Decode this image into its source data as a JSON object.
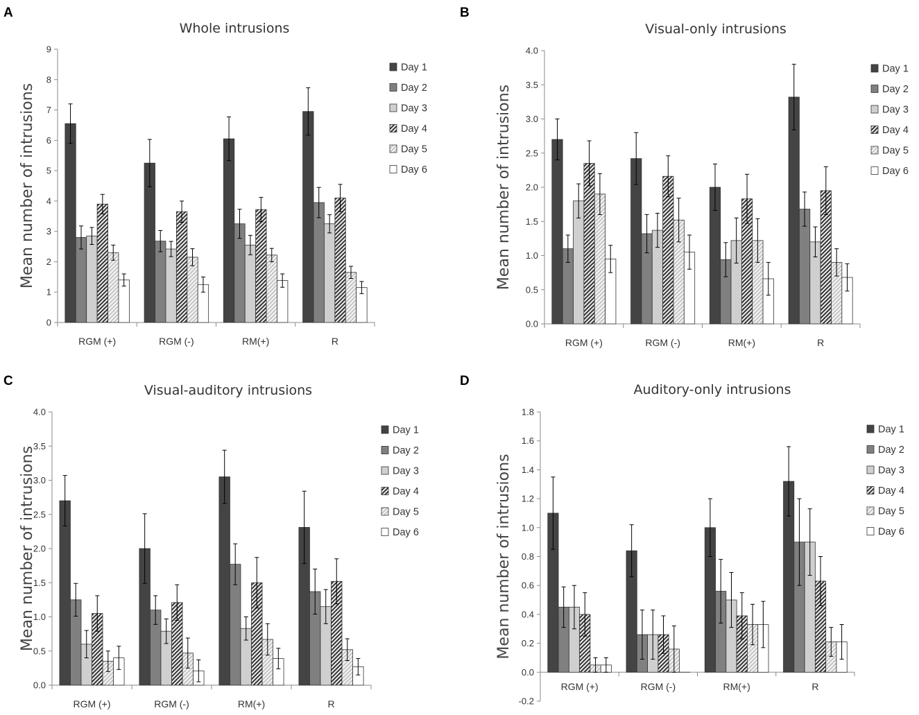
{
  "colors": {
    "day1": "#444444",
    "day2": "#808080",
    "day3": "#cfcfcf",
    "day4_bg": "#efefef",
    "day4_stripe": "#333333",
    "day5_bg": "#f3f3f3",
    "day5_stripe": "#bdbdbd",
    "day6": "#ffffff",
    "axis": "#8a8a8a"
  },
  "chart_data": [
    {
      "panel": "A",
      "type": "bar",
      "title": "Whole intrusions",
      "ylabel": "Mean number of intrusions",
      "xlabel": "",
      "ylim": [
        0,
        9
      ],
      "yticks": [
        "0",
        "1",
        "2",
        "3",
        "4",
        "5",
        "6",
        "7",
        "8",
        "9"
      ],
      "categories": [
        "RGM (+)",
        "RGM (-)",
        "RM(+)",
        "R"
      ],
      "legend": "right",
      "series": [
        {
          "name": "Day 1",
          "values": [
            6.55,
            5.25,
            6.05,
            6.95
          ],
          "errors": [
            0.65,
            0.78,
            0.72,
            0.78
          ]
        },
        {
          "name": "Day 2",
          "values": [
            2.8,
            2.68,
            3.25,
            3.95
          ],
          "errors": [
            0.38,
            0.35,
            0.48,
            0.5
          ]
        },
        {
          "name": "Day 3",
          "values": [
            2.85,
            2.42,
            2.55,
            3.25
          ],
          "errors": [
            0.28,
            0.25,
            0.32,
            0.3
          ]
        },
        {
          "name": "Day 4",
          "values": [
            3.9,
            3.65,
            3.72,
            4.1
          ],
          "errors": [
            0.32,
            0.35,
            0.4,
            0.45
          ]
        },
        {
          "name": "Day 5",
          "values": [
            2.3,
            2.15,
            2.22,
            1.65
          ],
          "errors": [
            0.25,
            0.28,
            0.22,
            0.2
          ]
        },
        {
          "name": "Day 6",
          "values": [
            1.4,
            1.25,
            1.38,
            1.15
          ],
          "errors": [
            0.2,
            0.25,
            0.22,
            0.2
          ]
        }
      ]
    },
    {
      "panel": "B",
      "type": "bar",
      "title": "Visual-only intrusions",
      "ylabel": "Mean number of intrusions",
      "xlabel": "",
      "ylim": [
        0,
        4
      ],
      "yticks": [
        "0.0",
        "0.5",
        "1.0",
        "1.5",
        "2.0",
        "2.5",
        "3.0",
        "3.5",
        "4.0"
      ],
      "categories": [
        "RGM (+)",
        "RGM (-)",
        "RM(+)",
        "R"
      ],
      "legend": "right",
      "series": [
        {
          "name": "Day 1",
          "values": [
            2.7,
            2.42,
            2.0,
            3.32
          ],
          "errors": [
            0.3,
            0.38,
            0.34,
            0.48
          ]
        },
        {
          "name": "Day 2",
          "values": [
            1.1,
            1.32,
            0.94,
            1.68
          ],
          "errors": [
            0.2,
            0.28,
            0.25,
            0.25
          ]
        },
        {
          "name": "Day 3",
          "values": [
            1.8,
            1.37,
            1.22,
            1.2
          ],
          "errors": [
            0.25,
            0.25,
            0.33,
            0.22
          ]
        },
        {
          "name": "Day 4",
          "values": [
            2.35,
            2.16,
            1.83,
            1.95
          ],
          "errors": [
            0.33,
            0.3,
            0.36,
            0.35
          ]
        },
        {
          "name": "Day 5",
          "values": [
            1.9,
            1.52,
            1.22,
            0.9
          ],
          "errors": [
            0.3,
            0.32,
            0.32,
            0.2
          ]
        },
        {
          "name": "Day 6",
          "values": [
            0.95,
            1.05,
            0.66,
            0.68
          ],
          "errors": [
            0.2,
            0.25,
            0.24,
            0.2
          ]
        }
      ]
    },
    {
      "panel": "C",
      "type": "bar",
      "title": "Visual-auditory intrusions",
      "ylabel": "Mean number of intrusions",
      "xlabel": "",
      "ylim": [
        0,
        4
      ],
      "yticks": [
        "0.0",
        "0.5",
        "1.0",
        "1.5",
        "2.0",
        "2.5",
        "3.0",
        "3.5",
        "4.0"
      ],
      "categories": [
        "RGM (+)",
        "RGM (-)",
        "RM(+)",
        "R"
      ],
      "legend": "right",
      "series": [
        {
          "name": "Day 1",
          "values": [
            2.7,
            2.0,
            3.05,
            2.31
          ],
          "errors": [
            0.37,
            0.51,
            0.39,
            0.53
          ]
        },
        {
          "name": "Day 2",
          "values": [
            1.25,
            1.1,
            1.77,
            1.37
          ],
          "errors": [
            0.24,
            0.21,
            0.3,
            0.33
          ]
        },
        {
          "name": "Day 3",
          "values": [
            0.6,
            0.79,
            0.83,
            1.15
          ],
          "errors": [
            0.2,
            0.18,
            0.17,
            0.25
          ]
        },
        {
          "name": "Day 4",
          "values": [
            1.05,
            1.21,
            1.5,
            1.52
          ],
          "errors": [
            0.26,
            0.26,
            0.37,
            0.33
          ]
        },
        {
          "name": "Day 5",
          "values": [
            0.35,
            0.47,
            0.67,
            0.52
          ],
          "errors": [
            0.15,
            0.22,
            0.23,
            0.16
          ]
        },
        {
          "name": "Day 6",
          "values": [
            0.4,
            0.21,
            0.39,
            0.27
          ],
          "errors": [
            0.17,
            0.16,
            0.15,
            0.12
          ]
        }
      ]
    },
    {
      "panel": "D",
      "type": "bar",
      "title": "Auditory-only intrusions",
      "ylabel": "Mean number of intrusions",
      "xlabel": "",
      "ylim": [
        -0.2,
        1.8
      ],
      "yticks": [
        "-0.2",
        "0.0",
        "0.2",
        "0.4",
        "0.6",
        "0.8",
        "1.0",
        "1.2",
        "1.4",
        "1.6",
        "1.8"
      ],
      "categories": [
        "RGM (+)",
        "RGM (-)",
        "RM(+)",
        "R"
      ],
      "legend": "right",
      "series": [
        {
          "name": "Day 1",
          "values": [
            1.1,
            0.84,
            1.0,
            1.32
          ],
          "errors": [
            0.25,
            0.18,
            0.2,
            0.24
          ]
        },
        {
          "name": "Day 2",
          "values": [
            0.45,
            0.26,
            0.56,
            0.9
          ],
          "errors": [
            0.14,
            0.17,
            0.22,
            0.3
          ]
        },
        {
          "name": "Day 3",
          "values": [
            0.45,
            0.26,
            0.5,
            0.9
          ],
          "errors": [
            0.15,
            0.17,
            0.19,
            0.23
          ]
        },
        {
          "name": "Day 4",
          "values": [
            0.4,
            0.26,
            0.39,
            0.63
          ],
          "errors": [
            0.15,
            0.13,
            0.16,
            0.17
          ]
        },
        {
          "name": "Day 5",
          "values": [
            0.05,
            0.16,
            0.33,
            0.21
          ],
          "errors": [
            0.05,
            0.16,
            0.14,
            0.1
          ]
        },
        {
          "name": "Day 6",
          "values": [
            0.05,
            0.0,
            0.33,
            0.21
          ],
          "errors": [
            0.05,
            0.0,
            0.16,
            0.12
          ]
        }
      ]
    }
  ]
}
